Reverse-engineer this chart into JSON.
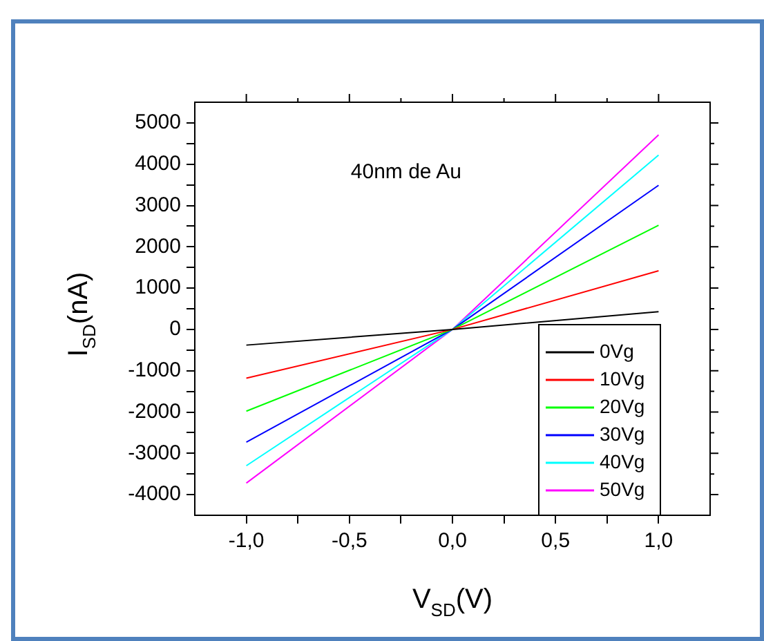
{
  "chart_data": {
    "type": "line",
    "xlabel": "V$_{SD}$(V)",
    "ylabel": "I$_{SD}$(nA)",
    "annotations": [
      "40nm de Au"
    ],
    "x": [
      -1,
      0,
      1
    ],
    "series": [
      {
        "name": "0Vg",
        "color": "#000000",
        "values": [
          -380,
          0,
          430
        ]
      },
      {
        "name": "10Vg",
        "color": "#ff0000",
        "values": [
          -1180,
          0,
          1420
        ]
      },
      {
        "name": "20Vg",
        "color": "#00ff00",
        "values": [
          -1980,
          0,
          2520
        ]
      },
      {
        "name": "30Vg",
        "color": "#0000ff",
        "values": [
          -2730,
          0,
          3490
        ]
      },
      {
        "name": "40Vg",
        "color": "#00ffff",
        "values": [
          -3300,
          0,
          4220
        ]
      },
      {
        "name": "50Vg",
        "color": "#ff00ff",
        "values": [
          -3720,
          0,
          4710
        ]
      }
    ],
    "xlim": [
      -1.25,
      1.25
    ],
    "xticks": [
      {
        "value": -1,
        "label": "-1,0"
      },
      {
        "value": -0.75,
        "label": null
      },
      {
        "value": -0.5,
        "label": "-0,5"
      },
      {
        "value": -0.25,
        "label": null
      },
      {
        "value": 0,
        "label": "0,0"
      },
      {
        "value": 0.25,
        "label": null
      },
      {
        "value": 0.5,
        "label": "0,5"
      },
      {
        "value": 0.75,
        "label": null
      },
      {
        "value": 1,
        "label": "1,0"
      }
    ],
    "ylim": [
      -4500,
      5500
    ],
    "yticks": [
      -4000,
      {
        "value": -3500,
        "label": null
      },
      -3000,
      {
        "value": -2500,
        "label": null
      },
      -2000,
      {
        "value": -1500,
        "label": null
      },
      -1000,
      {
        "value": -500,
        "label": null
      },
      0,
      {
        "value": 500,
        "label": null
      },
      1000,
      {
        "value": 1500,
        "label": null
      },
      2000,
      {
        "value": 2500,
        "label": null
      },
      3000,
      {
        "value": 3500,
        "label": null
      },
      4000,
      {
        "value": 4500,
        "label": null
      },
      5000
    ],
    "grid": false,
    "legend": "bottom right",
    "marker": "none",
    "line_style": "solid"
  }
}
